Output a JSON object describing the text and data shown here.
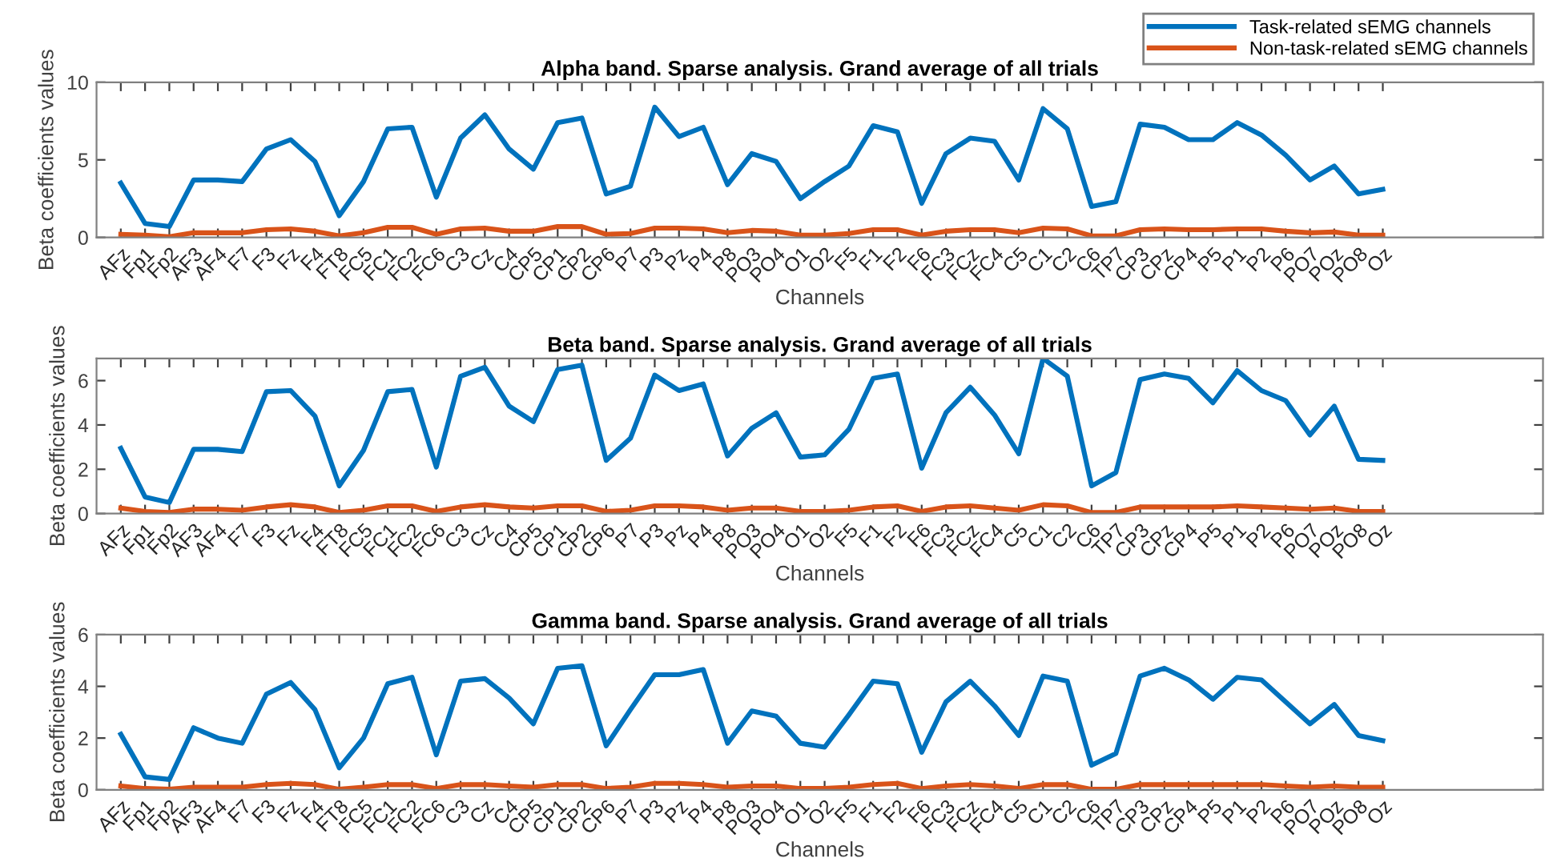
{
  "chart_data": [
    {
      "type": "line",
      "title": "Alpha band. Sparse analysis. Grand average of all trials",
      "xlabel": "Channels",
      "ylabel": "Beta coefficients values",
      "categories": [
        "AFz",
        "Fp1",
        "Fp2",
        "AF3",
        "AF4",
        "F7",
        "F3",
        "Fz",
        "F4",
        "FT8",
        "FC5",
        "FC1",
        "FC2",
        "FC6",
        "C3",
        "Cz",
        "C4",
        "CP5",
        "CP1",
        "CP2",
        "CP6",
        "P7",
        "P3",
        "Pz",
        "P4",
        "P8",
        "PO3",
        "PO4",
        "O1",
        "O2",
        "F5",
        "F1",
        "F2",
        "F6",
        "FC3",
        "FCz",
        "FC4",
        "C5",
        "C1",
        "C2",
        "C6",
        "TP7",
        "CP3",
        "CPz",
        "CP4",
        "P5",
        "P1",
        "P2",
        "P6",
        "PO7",
        "POz",
        "PO8",
        "Oz"
      ],
      "series": [
        {
          "name": "Task-related sEMG channels",
          "color": "#0072bd",
          "values": [
            3.5,
            0.9,
            0.7,
            3.7,
            3.7,
            3.6,
            5.7,
            6.3,
            4.9,
            1.4,
            3.6,
            7.0,
            7.1,
            2.6,
            6.4,
            7.9,
            5.7,
            4.4,
            7.4,
            7.7,
            2.8,
            3.3,
            8.4,
            6.5,
            7.1,
            3.4,
            5.4,
            4.9,
            2.5,
            3.6,
            4.6,
            7.2,
            6.8,
            2.2,
            5.4,
            6.4,
            6.2,
            3.7,
            8.3,
            7.0,
            2.0,
            2.3,
            7.3,
            7.1,
            6.3,
            6.3,
            7.4,
            6.6,
            5.3,
            3.7,
            4.6,
            2.8,
            3.1
          ]
        },
        {
          "name": "Non-task-related sEMG channels",
          "color": "#d95319",
          "values": [
            0.2,
            0.15,
            0.05,
            0.3,
            0.3,
            0.3,
            0.5,
            0.55,
            0.4,
            0.1,
            0.3,
            0.65,
            0.65,
            0.2,
            0.55,
            0.6,
            0.4,
            0.4,
            0.7,
            0.7,
            0.2,
            0.25,
            0.6,
            0.6,
            0.55,
            0.3,
            0.45,
            0.4,
            0.15,
            0.15,
            0.25,
            0.5,
            0.5,
            0.15,
            0.4,
            0.5,
            0.5,
            0.3,
            0.6,
            0.55,
            0.1,
            0.1,
            0.5,
            0.55,
            0.5,
            0.5,
            0.55,
            0.55,
            0.4,
            0.3,
            0.35,
            0.15,
            0.15
          ]
        }
      ],
      "ylim": [
        0,
        10
      ],
      "yticks": [
        0,
        5,
        10
      ],
      "legend": "top right",
      "grid": false
    },
    {
      "type": "line",
      "title": "Beta band. Sparse analysis. Grand average of all trials",
      "xlabel": "Channels",
      "ylabel": "Beta coefficients values",
      "categories": [
        "AFz",
        "Fp1",
        "Fp2",
        "AF3",
        "AF4",
        "F7",
        "F3",
        "Fz",
        "F4",
        "FT8",
        "FC5",
        "FC1",
        "FC2",
        "FC6",
        "C3",
        "Cz",
        "C4",
        "CP5",
        "CP1",
        "CP2",
        "CP6",
        "P7",
        "P3",
        "Pz",
        "P4",
        "P8",
        "PO3",
        "PO4",
        "O1",
        "O2",
        "F5",
        "F1",
        "F2",
        "F6",
        "FC3",
        "FCz",
        "FC4",
        "C5",
        "C1",
        "C2",
        "C6",
        "TP7",
        "CP3",
        "CPz",
        "CP4",
        "P5",
        "P1",
        "P2",
        "P6",
        "PO7",
        "POz",
        "PO8",
        "Oz"
      ],
      "series": [
        {
          "color": "#0072bd",
          "values": [
            2.95,
            0.75,
            0.5,
            2.9,
            2.9,
            2.8,
            5.5,
            5.55,
            4.4,
            1.25,
            2.85,
            5.5,
            5.6,
            2.1,
            6.2,
            6.6,
            4.85,
            4.15,
            6.5,
            6.7,
            2.4,
            3.4,
            6.25,
            5.55,
            5.85,
            2.6,
            3.85,
            4.55,
            2.55,
            2.65,
            3.8,
            6.1,
            6.3,
            2.05,
            4.55,
            5.7,
            4.45,
            2.7,
            7.0,
            6.2,
            1.25,
            1.85,
            6.05,
            6.3,
            6.1,
            5.0,
            6.45,
            5.55,
            5.1,
            3.55,
            4.85,
            2.45,
            2.4
          ]
        },
        {
          "color": "#d95319",
          "values": [
            0.25,
            0.1,
            0.05,
            0.2,
            0.2,
            0.15,
            0.3,
            0.4,
            0.3,
            0.05,
            0.15,
            0.35,
            0.35,
            0.1,
            0.3,
            0.4,
            0.3,
            0.25,
            0.35,
            0.35,
            0.1,
            0.15,
            0.35,
            0.35,
            0.3,
            0.15,
            0.25,
            0.25,
            0.1,
            0.1,
            0.15,
            0.3,
            0.35,
            0.1,
            0.3,
            0.35,
            0.25,
            0.15,
            0.4,
            0.35,
            0.05,
            0.05,
            0.3,
            0.3,
            0.3,
            0.3,
            0.35,
            0.3,
            0.25,
            0.2,
            0.25,
            0.1,
            0.1
          ]
        }
      ],
      "ylim": [
        0,
        7
      ],
      "yticks": [
        0,
        2,
        4,
        6
      ],
      "grid": false
    },
    {
      "type": "line",
      "title": "Gamma band. Sparse analysis. Grand average of all trials",
      "xlabel": "Channels",
      "ylabel": "Beta coefficients values",
      "categories": [
        "AFz",
        "Fp1",
        "Fp2",
        "AF3",
        "AF4",
        "F7",
        "F3",
        "Fz",
        "F4",
        "FT8",
        "FC5",
        "FC1",
        "FC2",
        "FC6",
        "C3",
        "Cz",
        "C4",
        "CP5",
        "CP1",
        "CP2",
        "CP6",
        "P7",
        "P3",
        "Pz",
        "P4",
        "P8",
        "PO3",
        "PO4",
        "O1",
        "O2",
        "F5",
        "F1",
        "F2",
        "F6",
        "FC3",
        "FCz",
        "FC4",
        "C5",
        "C1",
        "C2",
        "C6",
        "TP7",
        "CP3",
        "CPz",
        "CP4",
        "P5",
        "P1",
        "P2",
        "P6",
        "PO7",
        "POz",
        "PO8",
        "Oz"
      ],
      "series": [
        {
          "color": "#0072bd",
          "values": [
            2.15,
            0.5,
            0.4,
            2.4,
            2.0,
            1.8,
            3.7,
            4.15,
            3.1,
            0.85,
            2.0,
            4.1,
            4.35,
            1.35,
            4.2,
            4.3,
            3.55,
            2.55,
            4.7,
            4.8,
            1.7,
            3.1,
            4.45,
            4.45,
            4.65,
            1.8,
            3.05,
            2.85,
            1.8,
            1.65,
            2.9,
            4.2,
            4.1,
            1.45,
            3.4,
            4.2,
            3.25,
            2.1,
            4.4,
            4.2,
            0.95,
            1.4,
            4.4,
            4.7,
            4.25,
            3.5,
            4.35,
            4.25,
            3.4,
            2.55,
            3.3,
            2.1,
            1.9
          ]
        },
        {
          "color": "#d95319",
          "values": [
            0.15,
            0.05,
            0.02,
            0.1,
            0.1,
            0.1,
            0.2,
            0.25,
            0.2,
            0.02,
            0.1,
            0.2,
            0.2,
            0.05,
            0.2,
            0.2,
            0.15,
            0.1,
            0.2,
            0.2,
            0.05,
            0.1,
            0.25,
            0.25,
            0.2,
            0.1,
            0.15,
            0.15,
            0.05,
            0.05,
            0.1,
            0.2,
            0.25,
            0.05,
            0.15,
            0.2,
            0.15,
            0.05,
            0.2,
            0.2,
            0.02,
            0.02,
            0.2,
            0.2,
            0.2,
            0.2,
            0.2,
            0.2,
            0.15,
            0.1,
            0.15,
            0.1,
            0.1
          ]
        }
      ],
      "ylim": [
        0,
        6
      ],
      "yticks": [
        0,
        2,
        4,
        6
      ],
      "grid": false
    }
  ]
}
